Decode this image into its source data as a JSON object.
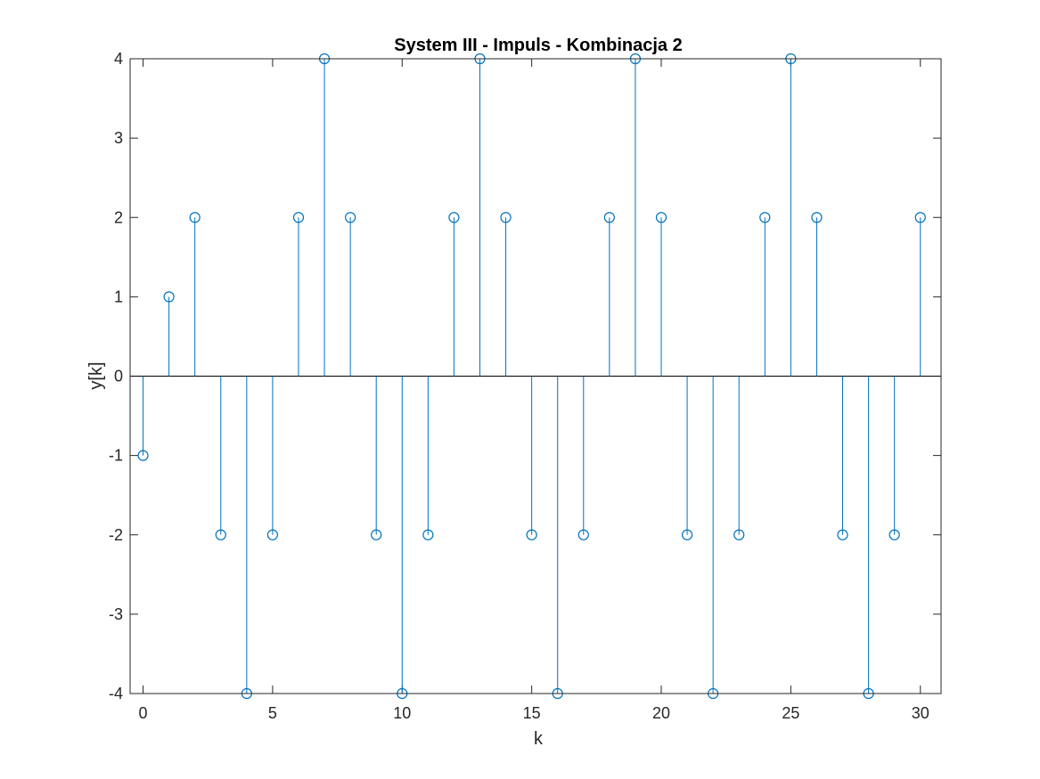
{
  "chart_data": {
    "type": "stem",
    "title": "System III - Impuls - Kombinacja 2",
    "xlabel": "k",
    "ylabel": "y[k]",
    "xlim": [
      -0.5,
      30.8
    ],
    "ylim": [
      -4,
      4
    ],
    "xticks": [
      0,
      5,
      10,
      15,
      20,
      25,
      30
    ],
    "yticks": [
      -4,
      -3,
      -2,
      -1,
      0,
      1,
      2,
      3,
      4
    ],
    "grid": false,
    "series": [
      {
        "x": [
          0,
          1,
          2,
          3,
          4,
          5,
          6,
          7,
          8,
          9,
          10,
          11,
          12,
          13,
          14,
          15,
          16,
          17,
          18,
          19,
          20,
          21,
          22,
          23,
          24,
          25,
          26,
          27,
          28,
          29,
          30
        ],
        "values": [
          -1,
          1,
          2,
          -2,
          -4,
          -2,
          2,
          4,
          2,
          -2,
          -4,
          -2,
          2,
          4,
          2,
          -2,
          -4,
          -2,
          2,
          4,
          2,
          -2,
          -4,
          -2,
          2,
          4,
          2,
          -2,
          -4,
          -2,
          2
        ],
        "color": "#0072BD"
      }
    ]
  }
}
